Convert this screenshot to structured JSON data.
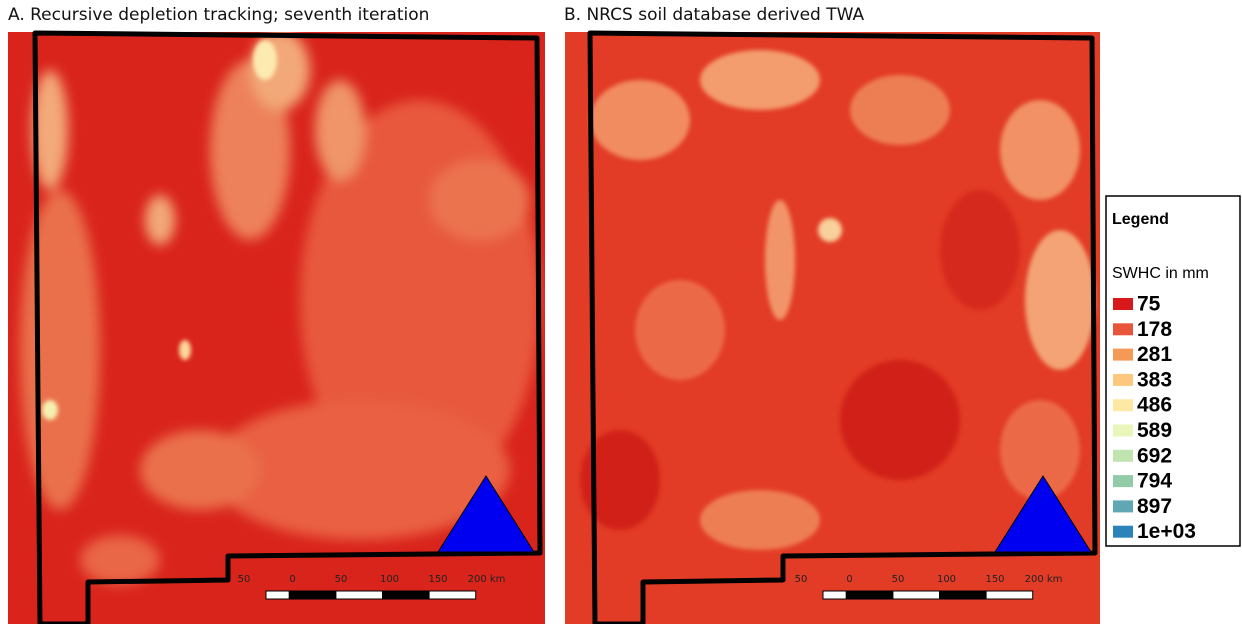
{
  "panels": [
    {
      "title": "A. Recursive depletion tracking; seventh iteration"
    },
    {
      "title": "B. NRCS soil database derived TWA"
    }
  ],
  "scale_bar": {
    "labels": [
      "50",
      "0",
      "50",
      "100",
      "150",
      "200 km"
    ]
  },
  "legend": {
    "title": "Legend",
    "subtitle": "SWHC in mm",
    "items": [
      {
        "label": "75",
        "color": "#d7191c"
      },
      {
        "label": "178",
        "color": "#e8553a"
      },
      {
        "label": "281",
        "color": "#f59a56"
      },
      {
        "label": "383",
        "color": "#fdc77f"
      },
      {
        "label": "486",
        "color": "#fee9a4"
      },
      {
        "label": "589",
        "color": "#e8f6b9"
      },
      {
        "label": "692",
        "color": "#c0e4b0"
      },
      {
        "label": "794",
        "color": "#92cba8"
      },
      {
        "label": "897",
        "color": "#5ea7b3"
      },
      {
        "label": "1e+03",
        "color": "#2b83ba"
      }
    ]
  }
}
